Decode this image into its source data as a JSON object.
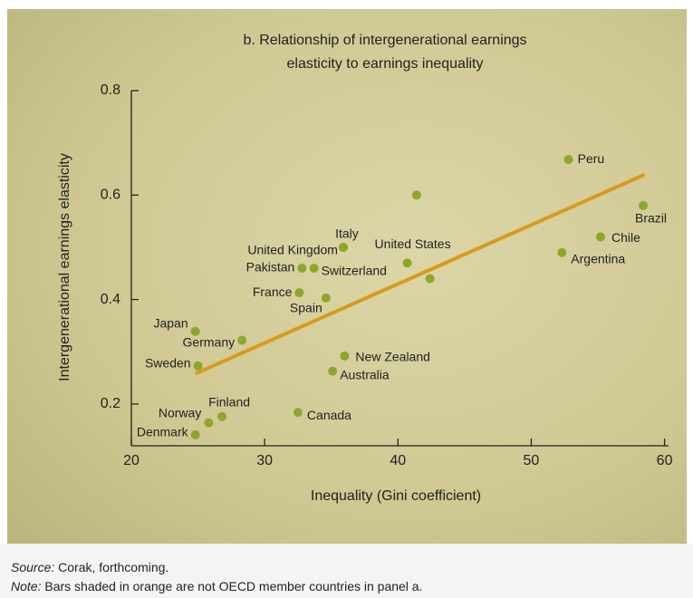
{
  "chart_data": {
    "type": "scatter",
    "title": [
      "b. Relationship of intergenerational earnings",
      "elasticity to earnings inequality"
    ],
    "x_label": "Inequality (Gini coefficient)",
    "y_label": "Intergenerational earnings elasticity",
    "xlim": [
      20,
      60.3
    ],
    "ylim": [
      0.12,
      0.8
    ],
    "xticks": [
      20,
      30,
      40,
      50,
      60
    ],
    "yticks": [
      0.2,
      0.4,
      0.6,
      0.8
    ],
    "series": [
      {
        "color": "#8ea62b",
        "x": [
          52.8,
          41.4,
          58.4,
          55.2,
          52.3,
          35.9,
          35.9,
          40.7,
          42.4,
          32.8,
          33.7,
          32.6,
          34.6,
          24.8,
          28.3,
          25.0,
          36.0,
          35.1,
          26.8,
          25.8,
          32.5,
          24.8
        ],
        "values": [
          0.668,
          0.6,
          0.58,
          0.52,
          0.49,
          0.5,
          0.5,
          0.47,
          0.44,
          0.46,
          0.46,
          0.413,
          0.403,
          0.339,
          0.322,
          0.273,
          0.292,
          0.263,
          0.176,
          0.164,
          0.184,
          0.141
        ],
        "labels": [
          "Peru",
          null,
          "Brazil",
          "Chile",
          "Argentina",
          "Italy",
          "United Kingdom",
          "United States",
          null,
          "Pakistan",
          "Switzerland",
          "France",
          "Spain",
          "Japan",
          "Germany",
          "Sweden",
          "New Zealand",
          "Australia",
          "Finland",
          "Norway",
          "Canada",
          "Denmark"
        ]
      }
    ],
    "trend": {
      "color": "#d99a1c",
      "x": [
        24.8,
        58.5
      ],
      "values": [
        0.258,
        0.639
      ]
    },
    "footer": {
      "source_label": "Source:",
      "source_text": " Corak, forthcoming.",
      "note_label": "Note:",
      "note_text": " Bars shaded in orange are not OECD member countries in panel a."
    }
  }
}
